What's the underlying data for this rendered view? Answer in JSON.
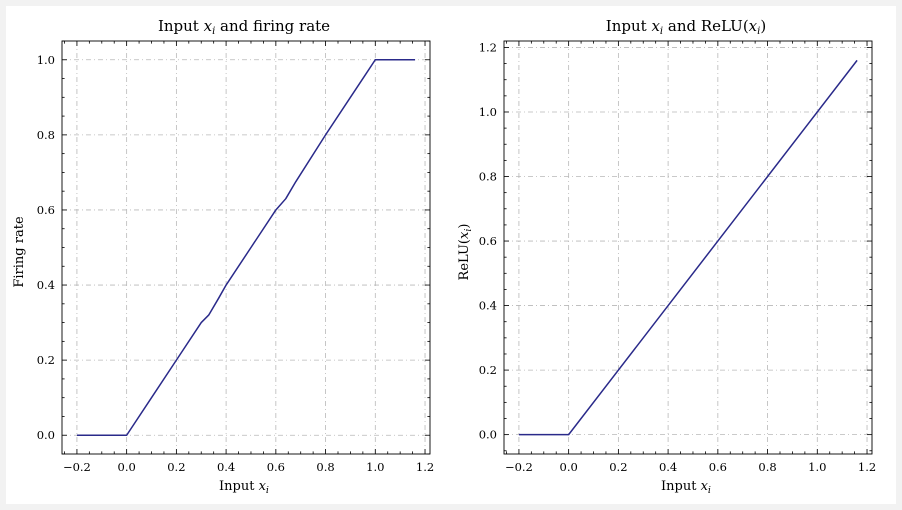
{
  "chart_data": [
    {
      "type": "line",
      "title": "Input x_i and firing rate",
      "title_parts": [
        "Input ",
        "x",
        "i",
        " and firing rate"
      ],
      "xlabel_parts": [
        "Input ",
        "x",
        "i"
      ],
      "ylabel": "Firing rate",
      "xlim": [
        -0.26,
        1.22
      ],
      "ylim": [
        -0.05,
        1.05
      ],
      "xticks": [
        -0.2,
        0.0,
        0.2,
        0.4,
        0.6,
        0.8,
        1.0,
        1.2
      ],
      "xtick_labels": [
        "−0.2",
        "0.0",
        "0.2",
        "0.4",
        "0.6",
        "0.8",
        "1.0",
        "1.2"
      ],
      "yticks": [
        0.0,
        0.2,
        0.4,
        0.6,
        0.8,
        1.0
      ],
      "ytick_labels": [
        "0.0",
        "0.2",
        "0.4",
        "0.6",
        "0.8",
        "1.0"
      ],
      "grid": true,
      "color": "#2a2a8a",
      "series": [
        {
          "x": [
            -0.2,
            0.0,
            0.1,
            0.2,
            0.3,
            0.33,
            0.37,
            0.4,
            0.5,
            0.6,
            0.64,
            0.68,
            0.8,
            0.9,
            0.96,
            1.0,
            1.16
          ],
          "y": [
            0.0,
            0.0,
            0.1,
            0.2,
            0.3,
            0.32,
            0.365,
            0.4,
            0.5,
            0.6,
            0.63,
            0.675,
            0.8,
            0.9,
            0.96,
            1.0,
            1.0
          ]
        }
      ]
    },
    {
      "type": "line",
      "title": "Input x_i and ReLU(x_i)",
      "title_parts": [
        "Input ",
        "x",
        "i",
        " and ReLU(",
        "x",
        "i",
        ")"
      ],
      "xlabel_parts": [
        "Input ",
        "x",
        "i"
      ],
      "ylabel_parts": [
        "ReLU(",
        "x",
        "i",
        ")"
      ],
      "xlim": [
        -0.26,
        1.22
      ],
      "ylim": [
        -0.06,
        1.22
      ],
      "xticks": [
        -0.2,
        0.0,
        0.2,
        0.4,
        0.6,
        0.8,
        1.0,
        1.2
      ],
      "xtick_labels": [
        "−0.2",
        "0.0",
        "0.2",
        "0.4",
        "0.6",
        "0.8",
        "1.0",
        "1.2"
      ],
      "yticks": [
        0.0,
        0.2,
        0.4,
        0.6,
        0.8,
        1.0,
        1.2
      ],
      "ytick_labels": [
        "0.0",
        "0.2",
        "0.4",
        "0.6",
        "0.8",
        "1.0",
        "1.2"
      ],
      "grid": true,
      "color": "#2a2a8a",
      "series": [
        {
          "x": [
            -0.2,
            0.0,
            1.16
          ],
          "y": [
            0.0,
            0.0,
            1.16
          ]
        }
      ]
    }
  ]
}
